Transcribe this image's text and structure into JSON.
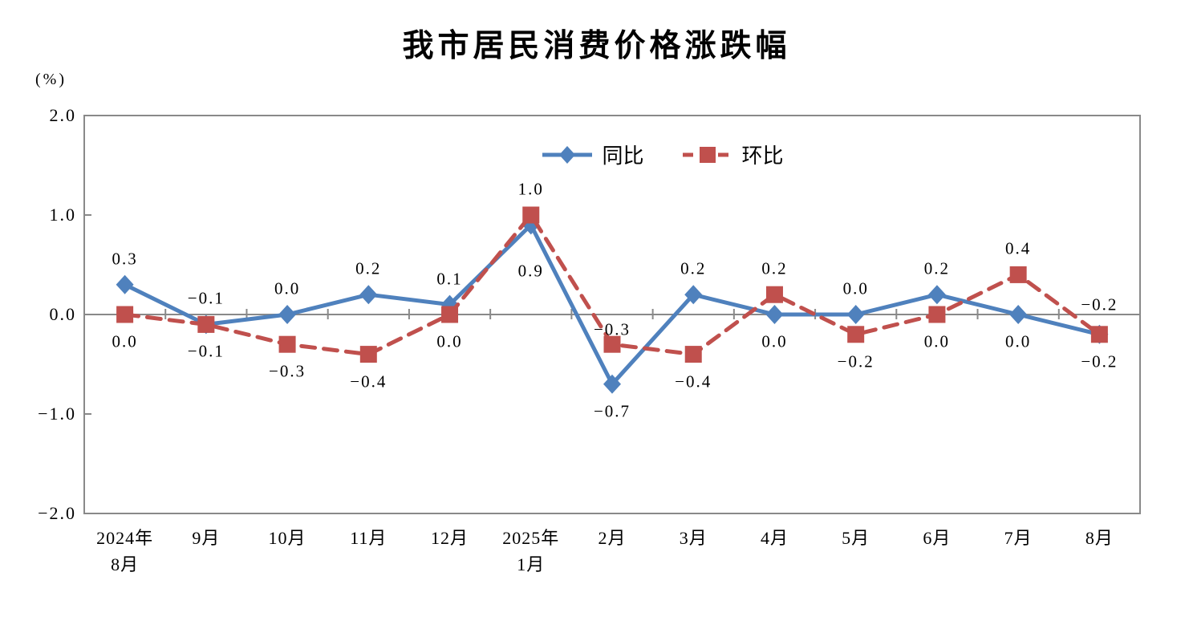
{
  "title": "我市居民消费价格涨跌幅",
  "unit_label": "(%)",
  "chart_data": {
    "type": "line",
    "title": "我市居民消费价格涨跌幅",
    "unit": "%",
    "categories": [
      "2024年8月",
      "9月",
      "10月",
      "11月",
      "12月",
      "2025年1月",
      "2月",
      "3月",
      "4月",
      "5月",
      "6月",
      "7月",
      "8月"
    ],
    "category_labels": [
      [
        "2024年",
        "8月"
      ],
      [
        "9月"
      ],
      [
        "10月"
      ],
      [
        "11月"
      ],
      [
        "12月"
      ],
      [
        "2025年",
        "1月"
      ],
      [
        "2月"
      ],
      [
        "3月"
      ],
      [
        "4月"
      ],
      [
        "5月"
      ],
      [
        "6月"
      ],
      [
        "7月"
      ],
      [
        "8月"
      ]
    ],
    "ylim": [
      -2.0,
      2.0
    ],
    "yticks": [
      2,
      1,
      0,
      -1,
      -2
    ],
    "ytick_labels": [
      "2.0",
      "1.0",
      "0.0",
      "−1.0",
      "−2.0"
    ],
    "grid": false,
    "legend_position": "top-center",
    "axis_color": "#898989",
    "series": [
      {
        "id": "yoy",
        "name": "同比",
        "color": "#4F81BD",
        "line_style": "solid",
        "marker": "diamond",
        "values": [
          0.3,
          -0.1,
          0.0,
          0.2,
          0.1,
          0.9,
          -0.7,
          0.2,
          0.0,
          0.0,
          0.2,
          0.0,
          -0.2
        ],
        "label_side": [
          "above",
          "above",
          "above",
          "above",
          "above",
          "below",
          "below",
          "above",
          "below",
          "above",
          "above",
          "below",
          "below"
        ],
        "label_dy_override": {
          "5": 58
        }
      },
      {
        "id": "mom",
        "name": "环比",
        "color": "#C0504D",
        "line_style": "dashed",
        "marker": "square",
        "values": [
          0.0,
          -0.1,
          -0.3,
          -0.4,
          0.0,
          1.0,
          -0.3,
          -0.4,
          0.2,
          -0.2,
          0.0,
          0.4,
          -0.2
        ],
        "label_side": [
          "below",
          "below",
          "below",
          "below",
          "below",
          "above",
          "above",
          "below",
          "above",
          "below",
          "below",
          "above",
          "above"
        ],
        "label_dy_override": {
          "6": -18,
          "12": -37
        }
      }
    ]
  }
}
